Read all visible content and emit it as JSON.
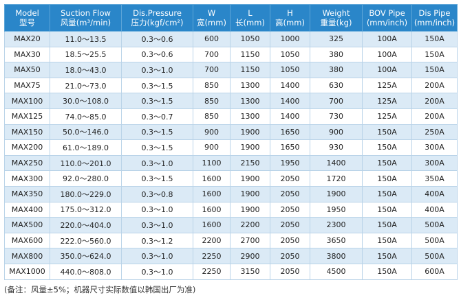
{
  "headers": [
    {
      "en": "Model",
      "cn": "型号"
    },
    {
      "en": "Suction Flow",
      "cn": "风量(m³/min)"
    },
    {
      "en": "Dis.Pressure",
      "cn": "压力(kgf/cm²)"
    },
    {
      "en": "W",
      "cn": "宽(mm)"
    },
    {
      "en": "L",
      "cn": "长(mm)"
    },
    {
      "en": "H",
      "cn": "高(mm)"
    },
    {
      "en": "Weight",
      "cn": "重量(kg)"
    },
    {
      "en": "BOV Pipe",
      "cn": "(mm/inch)"
    },
    {
      "en": "Dis Pipe",
      "cn": "(mm/inch)"
    }
  ],
  "rows": [
    [
      "MAX20",
      "11.0～13.5",
      "0.3～0.6",
      "600",
      "1050",
      "1000",
      "325",
      "100A",
      "150A"
    ],
    [
      "MAX30",
      "18.5～25.5",
      "0.3～0.6",
      "700",
      "1150",
      "1050",
      "380",
      "100A",
      "150A"
    ],
    [
      "MAX50",
      "18.0～43.0",
      "0.3～1.0",
      "700",
      "1150",
      "1050",
      "380",
      "100A",
      "150A"
    ],
    [
      "MAX75",
      "21.0～73.0",
      "0.3～1.5",
      "850",
      "1300",
      "1400",
      "630",
      "125A",
      "200A"
    ],
    [
      "MAX100",
      "30.0～108.0",
      "0.3～1.5",
      "850",
      "1300",
      "1400",
      "700",
      "125A",
      "200A"
    ],
    [
      "MAX125",
      "74.0～85.0",
      "0.3～0.7",
      "850",
      "1300",
      "1400",
      "730",
      "125A",
      "200A"
    ],
    [
      "MAX150",
      "50.0～146.0",
      "0.3～1.5",
      "900",
      "1900",
      "1650",
      "900",
      "150A",
      "250A"
    ],
    [
      "MAX200",
      "61.0～189.0",
      "0.3～1.5",
      "900",
      "1900",
      "1650",
      "930",
      "150A",
      "300A"
    ],
    [
      "MAX250",
      "110.0～201.0",
      "0.3～1.0",
      "1100",
      "2150",
      "1950",
      "1400",
      "150A",
      "300A"
    ],
    [
      "MAX300",
      "92.0～280.0",
      "0.3～1.5",
      "1600",
      "1900",
      "2050",
      "1720",
      "150A",
      "350A"
    ],
    [
      "MAX350",
      "180.0～229.0",
      "0.3～0.8",
      "1600",
      "1900",
      "2050",
      "1900",
      "150A",
      "400A"
    ],
    [
      "MAX400",
      "175.0～312.0",
      "0.3～1.0",
      "1600",
      "1900",
      "2050",
      "1950",
      "150A",
      "400A"
    ],
    [
      "MAX500",
      "220.0～404.0",
      "0.3～1.0",
      "1600",
      "2200",
      "2050",
      "2300",
      "150A",
      "500A"
    ],
    [
      "MAX600",
      "222.0～560.0",
      "0.3～1.2",
      "2200",
      "2700",
      "2050",
      "3650",
      "150A",
      "500A"
    ],
    [
      "MAX800",
      "350.0～624.0",
      "0.3～1.0",
      "2250",
      "2900",
      "2050",
      "3800",
      "150A",
      "500A"
    ],
    [
      "MAX1000",
      "440.0～808.0",
      "0.3～1.0",
      "2250",
      "3150",
      "2050",
      "4500",
      "150A",
      "600A"
    ]
  ],
  "note": "(备注：风量±5%；机器尺寸实际数值以韩国出厂为准)",
  "colors": {
    "header_bg": "#2a86c9",
    "stripe_bg": "#dbeaf6",
    "border": "#b9d3e8"
  }
}
